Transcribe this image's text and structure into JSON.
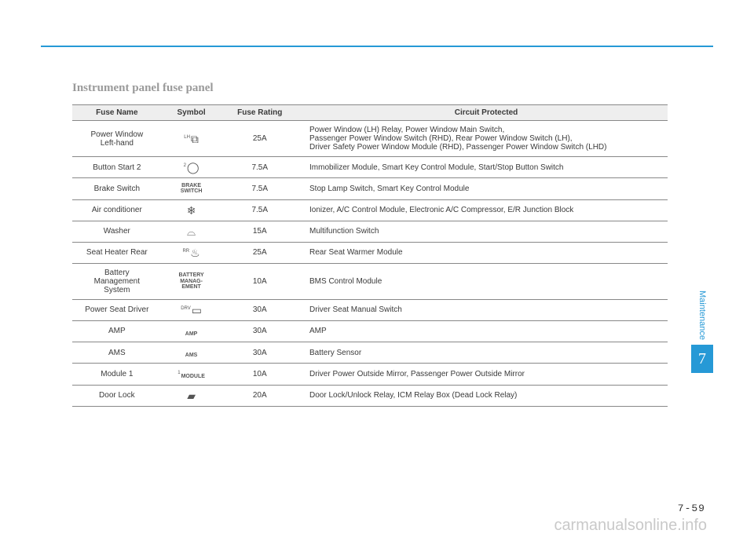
{
  "page": {
    "title": "Instrument panel fuse panel",
    "pageNumber": "7-59",
    "watermark": "carmanualsonline.info",
    "sideLabel": "Maintenance",
    "sideNumber": "7"
  },
  "table": {
    "headers": {
      "name": "Fuse Name",
      "symbol": "Symbol",
      "rating": "Fuse Rating",
      "circuit": "Circuit Protected"
    },
    "rows": [
      {
        "name": "Power Window\nLeft-hand",
        "symbolType": "glyph",
        "symbolSup": "LH",
        "symbolGlyph": "⧉",
        "rating": "25A",
        "circuit": "Power Window (LH) Relay, Power Window Main Switch,\nPassenger Power Window Switch (RHD), Rear Power Window Switch (LH),\nDriver Safety Power Window Module (RHD), Passenger Power Window Switch (LHD)"
      },
      {
        "name": "Button Start 2",
        "symbolType": "glyph",
        "symbolSup": "2",
        "symbolGlyph": "◯",
        "rating": "7.5A",
        "circuit": "Immobilizer Module, Smart Key Control Module, Start/Stop Button Switch"
      },
      {
        "name": "Brake Switch",
        "symbolType": "text",
        "symbolText": "BRAKE\nSWITCH",
        "rating": "7.5A",
        "circuit": "Stop Lamp Switch, Smart Key Control Module"
      },
      {
        "name": "Air conditioner",
        "symbolType": "glyph",
        "symbolGlyph": "❄",
        "rating": "7.5A",
        "circuit": "Ionizer, A/C Control Module, Electronic A/C Compressor, E/R Junction Block"
      },
      {
        "name": "Washer",
        "symbolType": "glyph",
        "symbolGlyph": "⌓",
        "rating": "15A",
        "circuit": "Multifunction Switch"
      },
      {
        "name": "Seat Heater Rear",
        "symbolType": "glyph",
        "symbolSup": "RR",
        "symbolGlyph": "♨",
        "rating": "25A",
        "circuit": "Rear Seat Warmer Module"
      },
      {
        "name": "Battery\nManagement\nSystem",
        "symbolType": "text",
        "symbolText": "BATTERY\nMANAG-\nEMENT",
        "rating": "10A",
        "circuit": "BMS Control Module"
      },
      {
        "name": "Power Seat Driver",
        "symbolType": "glyph",
        "symbolSup": "DRV",
        "symbolGlyph": "▭",
        "rating": "30A",
        "circuit": "Driver Seat Manual Switch"
      },
      {
        "name": "AMP",
        "symbolType": "text",
        "symbolText": "AMP",
        "rating": "30A",
        "circuit": "AMP"
      },
      {
        "name": "AMS",
        "symbolType": "text",
        "symbolText": "AMS",
        "rating": "30A",
        "circuit": "Battery Sensor"
      },
      {
        "name": "Module 1",
        "symbolType": "text",
        "symbolSup": "1",
        "symbolText": "MODULE",
        "rating": "10A",
        "circuit": "Driver Power Outside Mirror, Passenger Power Outside Mirror"
      },
      {
        "name": "Door Lock",
        "symbolType": "glyph",
        "symbolGlyph": "▰",
        "rating": "20A",
        "circuit": "Door Lock/Unlock Relay, ICM Relay Box (Dead Lock Relay)"
      }
    ]
  },
  "colors": {
    "accent": "#2699d6",
    "headerBg": "#eeeeee",
    "border": "#888888",
    "titleGrey": "#9a9a9a",
    "watermark": "#c9c9c9"
  }
}
